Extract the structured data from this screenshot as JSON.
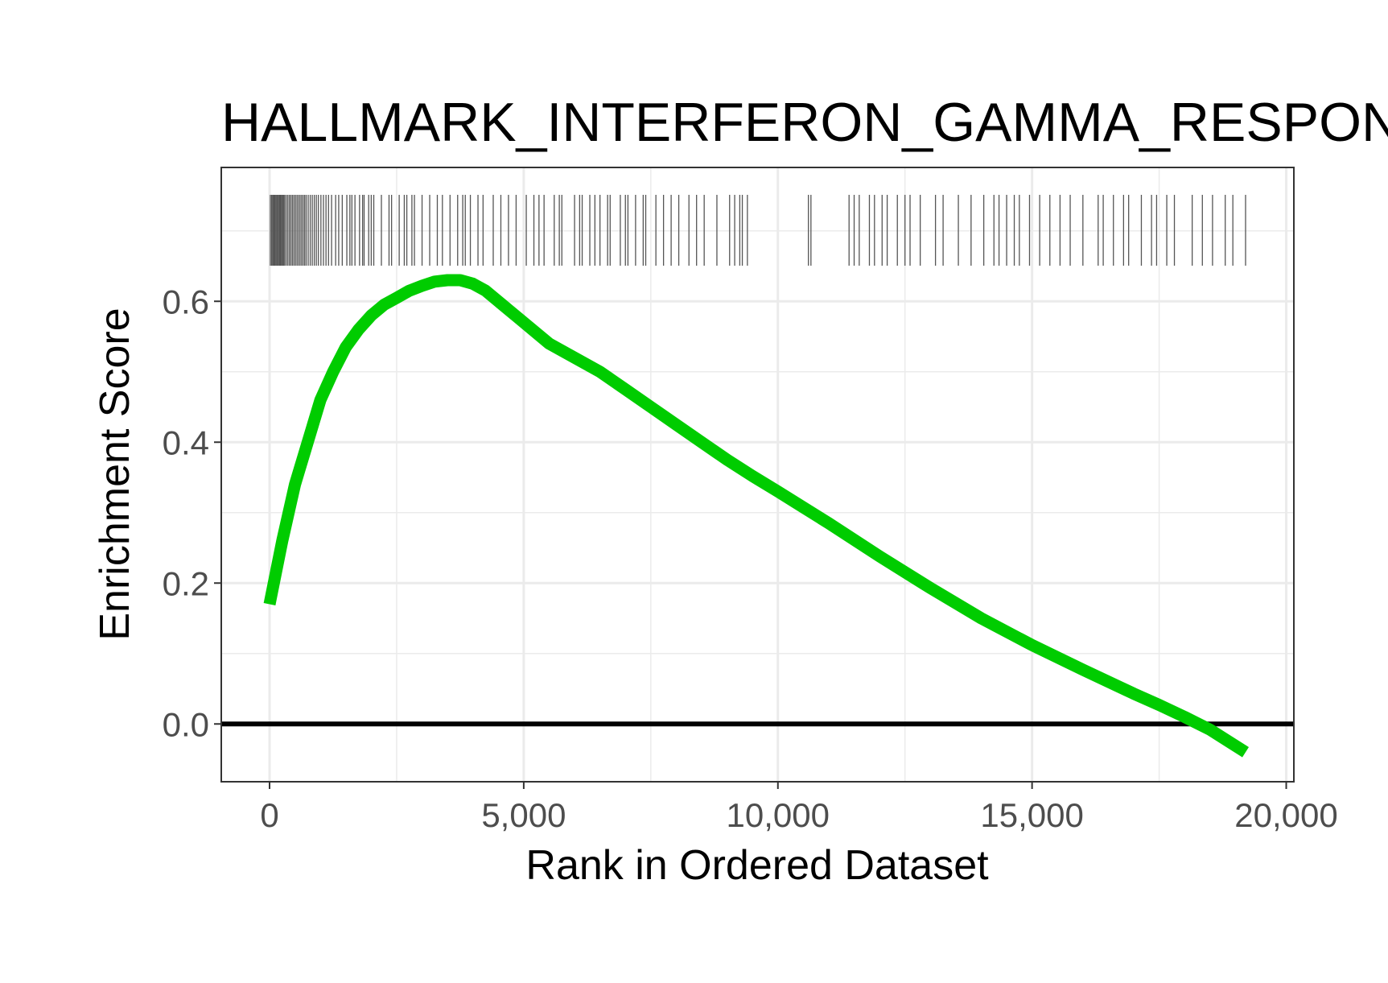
{
  "chart_data": {
    "type": "line",
    "title": "HALLMARK_INTERFERON_GAMMA_RESPONSE",
    "xlabel": "Rank in Ordered Dataset",
    "ylabel": "Enrichment Score",
    "xlim": [
      -950,
      20150
    ],
    "ylim": [
      -0.082,
      0.79
    ],
    "x_ticks": [
      0,
      5000,
      10000,
      15000,
      20000
    ],
    "x_tick_labels": [
      "0",
      "5,000",
      "10,000",
      "15,000",
      "20,000"
    ],
    "y_ticks": [
      0.0,
      0.2,
      0.4,
      0.6
    ],
    "y_tick_labels": [
      "0.0",
      "0.2",
      "0.4",
      "0.6"
    ],
    "grid": true,
    "legend": "none",
    "colors": {
      "curve": "#00cc00",
      "hits": "#555555",
      "zero_line": "#000000",
      "panel_border": "#333333",
      "grid": "#ebebeb"
    },
    "series": [
      {
        "x": [
          0,
          250,
          500,
          750,
          1000,
          1250,
          1500,
          1750,
          2000,
          2250,
          2500,
          2750,
          3000,
          3250,
          3500,
          3750,
          4000,
          4250,
          4500,
          5000,
          5500,
          6000,
          6500,
          7000,
          7500,
          8000,
          8500,
          9000,
          9500,
          10000,
          11000,
          12000,
          13000,
          14000,
          15000,
          16000,
          17000,
          17500,
          18000,
          18500,
          19200
        ],
        "y": [
          0.17,
          0.26,
          0.34,
          0.4,
          0.46,
          0.5,
          0.535,
          0.56,
          0.58,
          0.595,
          0.605,
          0.615,
          0.622,
          0.628,
          0.63,
          0.63,
          0.625,
          0.615,
          0.6,
          0.57,
          0.54,
          0.52,
          0.5,
          0.475,
          0.45,
          0.425,
          0.4,
          0.375,
          0.352,
          0.33,
          0.285,
          0.238,
          0.193,
          0.15,
          0.112,
          0.077,
          0.043,
          0.027,
          0.01,
          -0.008,
          -0.04
        ]
      }
    ],
    "hits": [
      15,
      40,
      60,
      80,
      95,
      110,
      130,
      150,
      170,
      190,
      205,
      220,
      240,
      260,
      280,
      300,
      330,
      360,
      390,
      420,
      450,
      480,
      510,
      540,
      570,
      600,
      630,
      660,
      690,
      720,
      760,
      800,
      840,
      880,
      920,
      960,
      1010,
      1060,
      1110,
      1160,
      1220,
      1300,
      1360,
      1430,
      1520,
      1580,
      1620,
      1680,
      1770,
      1830,
      1860,
      1950,
      2000,
      2050,
      2200,
      2350,
      2400,
      2550,
      2650,
      2700,
      2800,
      2850,
      3000,
      3150,
      3300,
      3400,
      3550,
      3700,
      3800,
      3850,
      3950,
      4100,
      4200,
      4400,
      4550,
      4700,
      4850,
      5050,
      5200,
      5300,
      5400,
      5600,
      5700,
      5750,
      6000,
      6100,
      6150,
      6300,
      6400,
      6500,
      6650,
      6700,
      6900,
      7000,
      7050,
      7200,
      7350,
      7400,
      7600,
      7750,
      7900,
      8050,
      8250,
      8400,
      8550,
      8800,
      9050,
      9150,
      9250,
      9300,
      9400,
      10600,
      10650,
      11400,
      11500,
      11600,
      11800,
      11900,
      12050,
      12150,
      12350,
      12500,
      12600,
      12800,
      13100,
      13250,
      13550,
      13800,
      14050,
      14250,
      14350,
      14500,
      14650,
      14750,
      14950,
      15150,
      15350,
      15550,
      15750,
      16000,
      16300,
      16400,
      16600,
      16800,
      16900,
      17150,
      17350,
      17450,
      17650,
      17800,
      18150,
      18350,
      18550,
      18800,
      18950,
      19200
    ]
  }
}
